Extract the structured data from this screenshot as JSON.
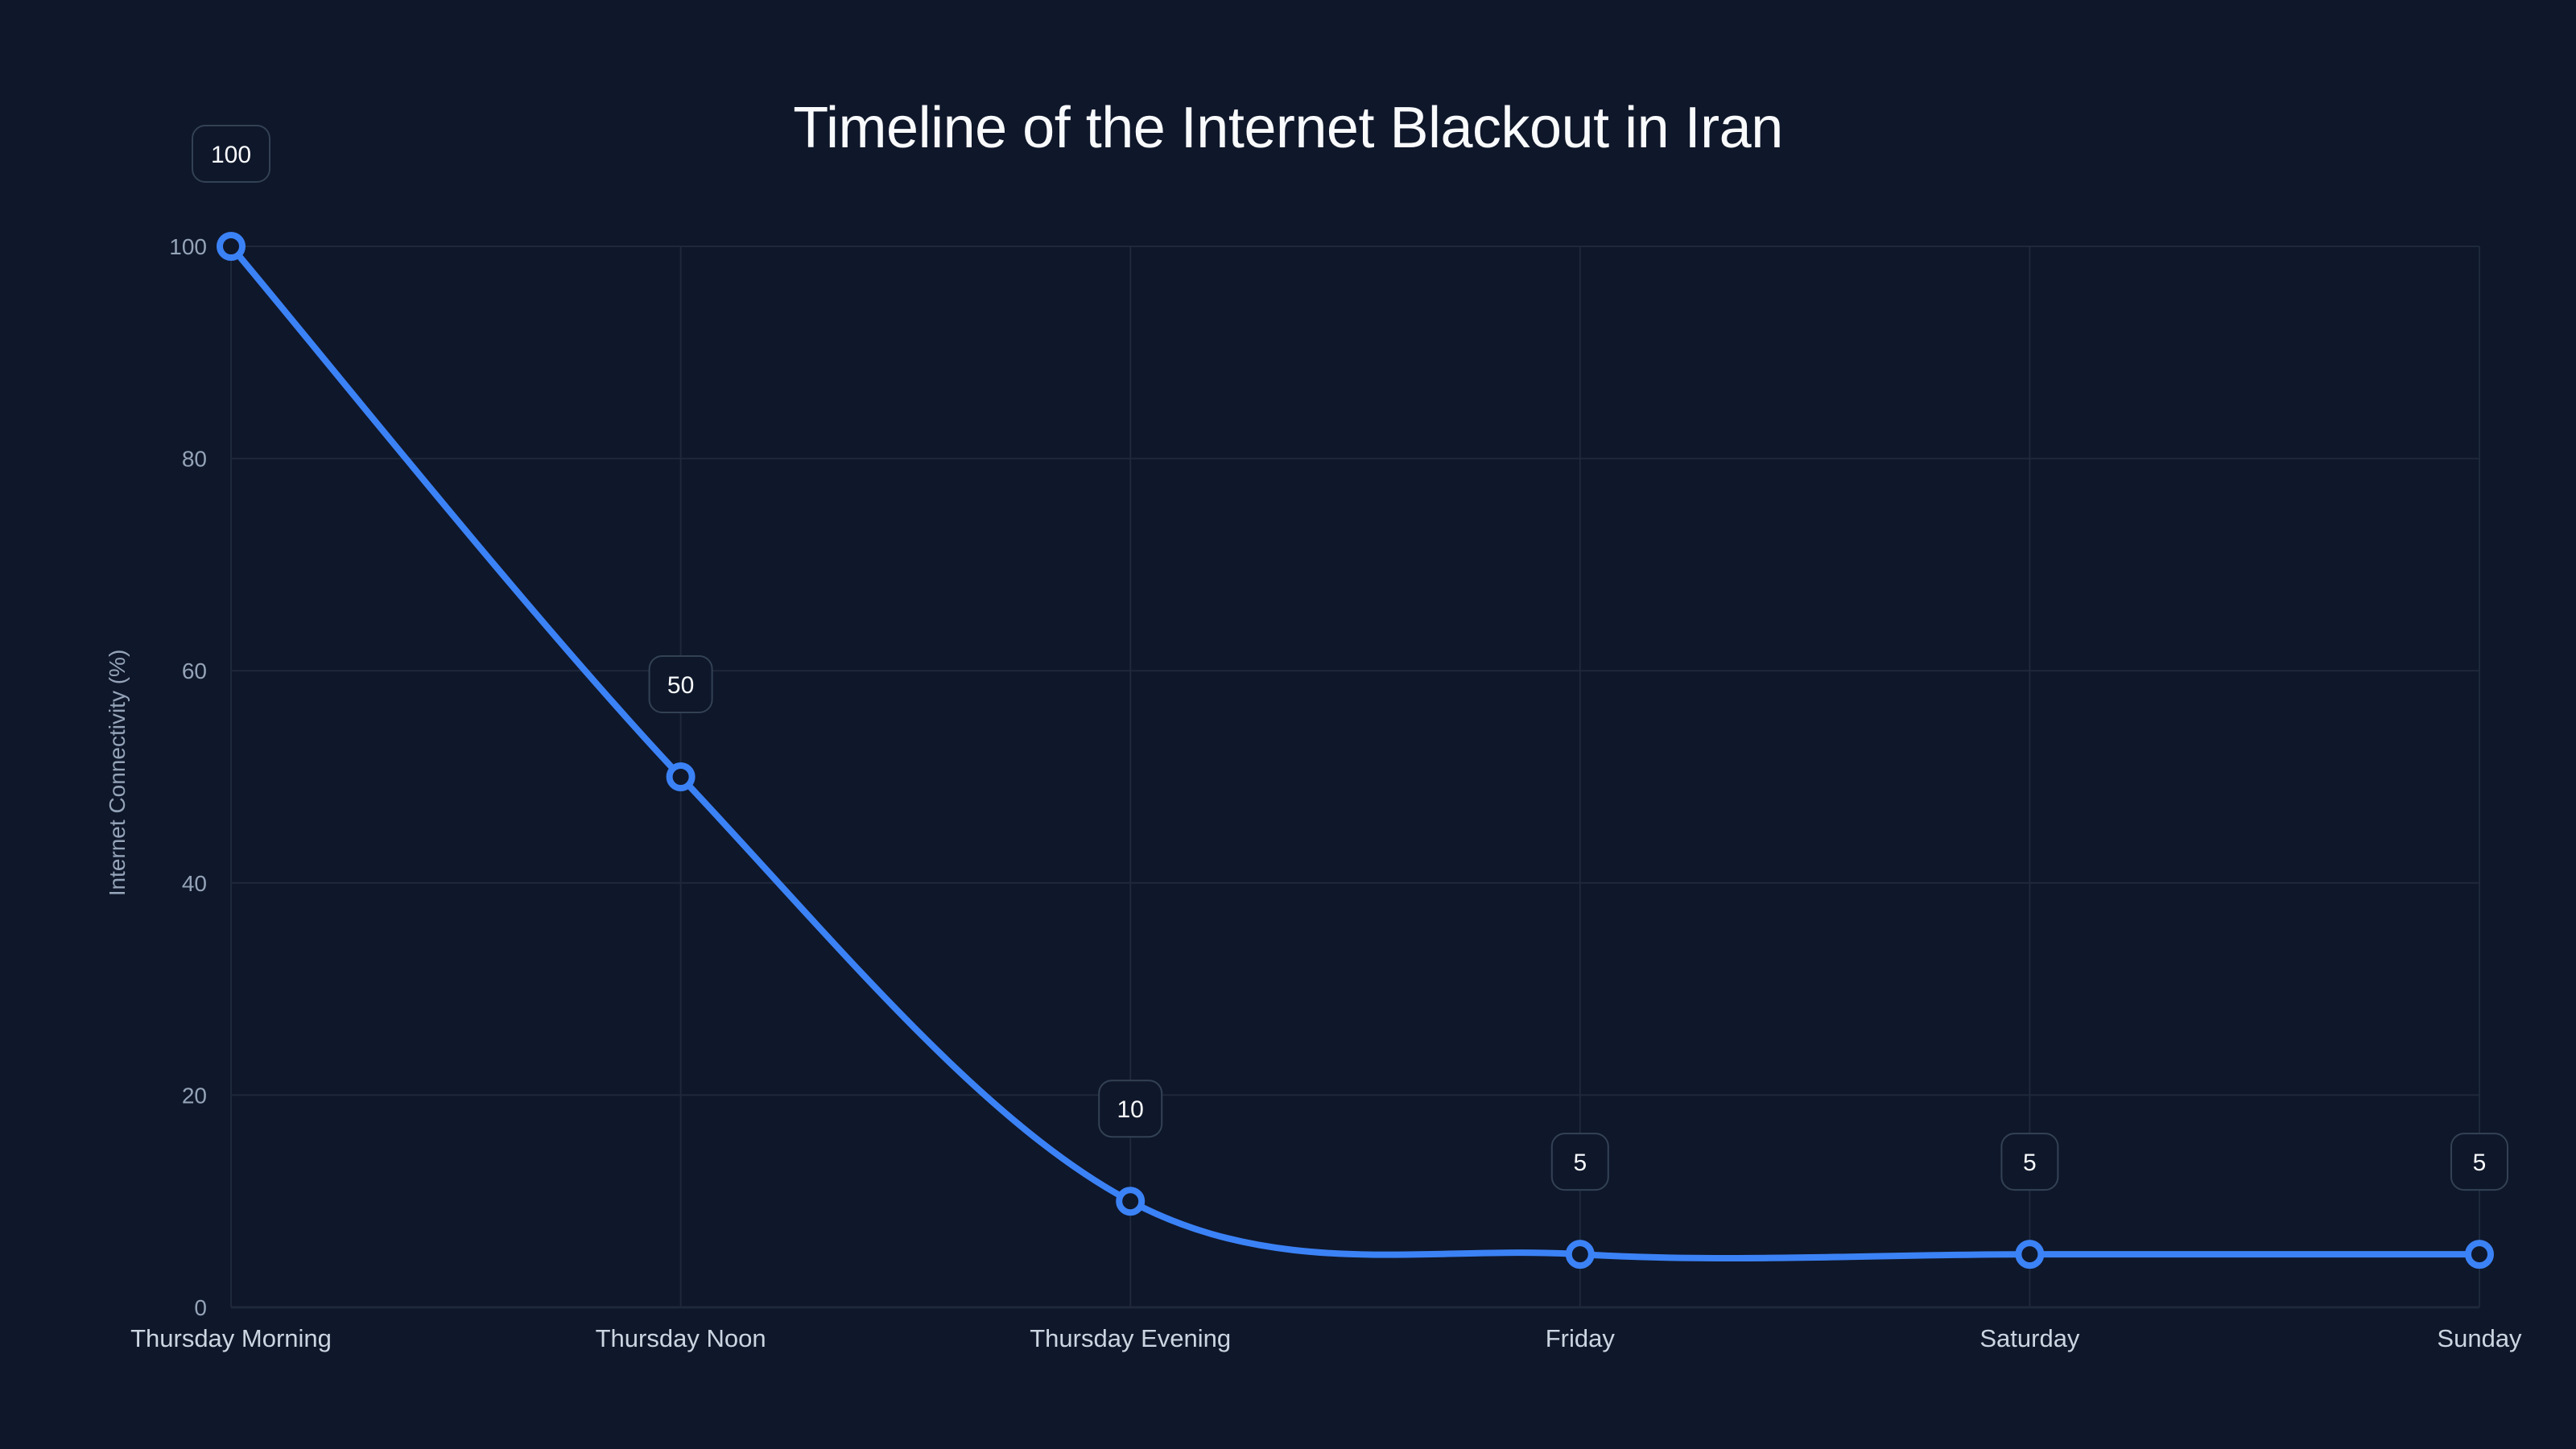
{
  "chart_data": {
    "type": "line",
    "title": "Timeline of the Internet Blackout in Iran",
    "xlabel": "",
    "ylabel": "Internet Connectivity (%)",
    "categories": [
      "Thursday Morning",
      "Thursday Noon",
      "Thursday Evening",
      "Friday",
      "Saturday",
      "Sunday"
    ],
    "series": [
      {
        "name": "Internet Connectivity",
        "values": [
          100,
          50,
          10,
          5,
          5,
          5
        ],
        "color": "#3b82f6"
      }
    ],
    "data_labels": [
      "100",
      "50",
      "10",
      "5",
      "5",
      "5"
    ],
    "ylim": [
      0,
      100
    ],
    "yticks": [
      0,
      20,
      40,
      60,
      80,
      100
    ],
    "ytick_labels": [
      "0",
      "20",
      "40",
      "60",
      "80",
      "100"
    ],
    "grid": true,
    "legend": "none",
    "smooth": true
  },
  "colors": {
    "background": "#0f172a",
    "line": "#3b82f6",
    "grid": "#1e293b",
    "label_box_border": "#334155"
  }
}
